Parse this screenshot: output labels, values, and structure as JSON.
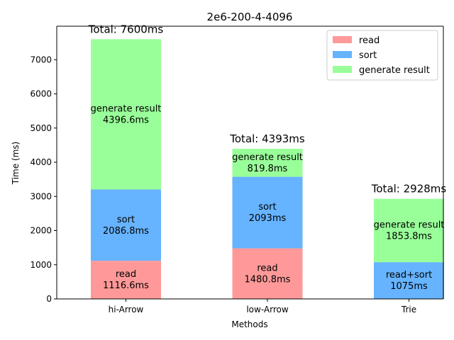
{
  "chart_data": {
    "type": "bar",
    "stacked": true,
    "title": "2e6-200-4-4096",
    "xlabel": "Methods",
    "ylabel": "Time (ms)",
    "ylim": [
      0,
      7980
    ],
    "yticks": [
      0,
      1000,
      2000,
      3000,
      4000,
      5000,
      6000,
      7000
    ],
    "grid": false,
    "legend_position": "top-right",
    "categories": [
      "hi-Arrow",
      "low-Arrow",
      "Trie"
    ],
    "series": [
      {
        "name": "read",
        "color": "#ff9999"
      },
      {
        "name": "sort",
        "color": "#66b3ff"
      },
      {
        "name": "generate result",
        "color": "#99ff99"
      }
    ],
    "bars": [
      {
        "category": "hi-Arrow",
        "total_label": "Total: 7600ms",
        "segments": [
          {
            "series": "read",
            "value": 1116.6,
            "label": [
              "read",
              "1116.6ms"
            ]
          },
          {
            "series": "sort",
            "value": 2086.8,
            "label": [
              "sort",
              "2086.8ms"
            ]
          },
          {
            "series": "generate result",
            "value": 4396.6,
            "label": [
              "generate result",
              "4396.6ms"
            ]
          }
        ]
      },
      {
        "category": "low-Arrow",
        "total_label": "Total: 4393ms",
        "segments": [
          {
            "series": "read",
            "value": 1480.8,
            "label": [
              "read",
              "1480.8ms"
            ]
          },
          {
            "series": "sort",
            "value": 2093,
            "label": [
              "sort",
              "2093ms"
            ]
          },
          {
            "series": "generate result",
            "value": 819.8,
            "label": [
              "generate result",
              "819.8ms"
            ]
          }
        ]
      },
      {
        "category": "Trie",
        "total_label": "Total: 2928ms",
        "segments": [
          {
            "series": "sort",
            "value": 1075,
            "label": [
              "read+sort",
              "1075ms"
            ]
          },
          {
            "series": "generate result",
            "value": 1853.8,
            "label": [
              "generate result",
              "1853.8ms"
            ]
          }
        ]
      }
    ]
  }
}
